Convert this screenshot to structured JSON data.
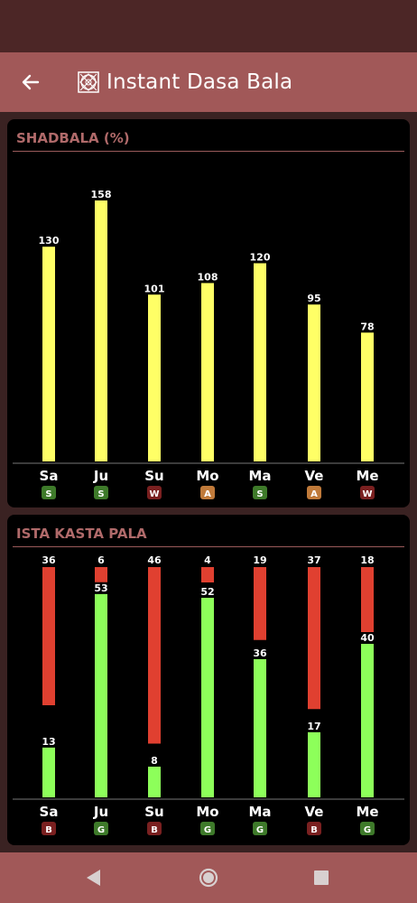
{
  "app": {
    "title": "Instant Dasa Bala"
  },
  "icons": {
    "back": "arrow-left-icon",
    "app": "mandala-icon",
    "nav_back": "triangle-back-icon",
    "nav_home": "circle-home-icon",
    "nav_recents": "square-recents-icon"
  },
  "colors": {
    "app_bar": "#a15858",
    "shadbala_bar": "#ffff66",
    "ista_bar": "#8dff5a",
    "kasta_bar": "#e04030",
    "badge_green": "#3e7a2a",
    "badge_red": "#7a2020",
    "badge_orange": "#c07a3a"
  },
  "shadbala": {
    "title": "SHADBALA (%)",
    "chart_data": {
      "type": "bar",
      "categories": [
        "Sa",
        "Ju",
        "Su",
        "Mo",
        "Ma",
        "Ve",
        "Me"
      ],
      "values": [
        130,
        158,
        101,
        108,
        120,
        95,
        78
      ],
      "badges": [
        "S",
        "S",
        "W",
        "A",
        "S",
        "A",
        "W"
      ],
      "badge_colors": [
        "#3e7a2a",
        "#3e7a2a",
        "#7a2020",
        "#c07a3a",
        "#3e7a2a",
        "#c07a3a",
        "#7a2020"
      ],
      "ylim": [
        0,
        158
      ]
    }
  },
  "ista_kasta": {
    "title": "ISTA KASTA PALA",
    "chart_data": {
      "type": "bar",
      "categories": [
        "Sa",
        "Ju",
        "Su",
        "Mo",
        "Ma",
        "Ve",
        "Me"
      ],
      "series": [
        {
          "values": [
            13,
            53,
            8,
            52,
            36,
            17,
            40
          ]
        },
        {
          "values": [
            36,
            6,
            46,
            4,
            19,
            37,
            18
          ]
        }
      ],
      "badges": [
        "B",
        "G",
        "B",
        "G",
        "G",
        "B",
        "G"
      ],
      "badge_colors": [
        "#7a2020",
        "#3e7a2a",
        "#7a2020",
        "#3e7a2a",
        "#3e7a2a",
        "#7a2020",
        "#3e7a2a"
      ]
    }
  }
}
